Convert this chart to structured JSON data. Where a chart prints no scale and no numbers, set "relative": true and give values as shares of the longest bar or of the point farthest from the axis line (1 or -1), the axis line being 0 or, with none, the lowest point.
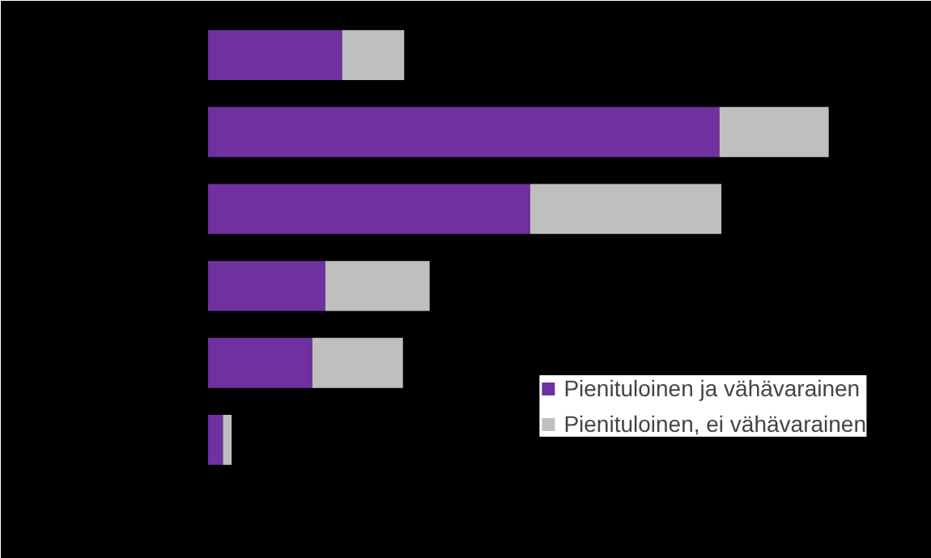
{
  "chart_data": {
    "type": "bar",
    "orientation": "horizontal",
    "stacked": true,
    "relative": true,
    "categories": [
      null,
      null,
      null,
      null,
      null,
      null
    ],
    "series": [
      {
        "name": "Pienituloinen ja vähävarainen",
        "color": "#7030a0",
        "values": [
          0.216,
          0.824,
          0.519,
          0.189,
          0.168,
          0.024
        ]
      },
      {
        "name": "Pienituloinen, ei vähävarainen",
        "color": "#bfbfbf",
        "values": [
          0.1,
          0.176,
          0.308,
          0.168,
          0.146,
          0.014
        ]
      }
    ],
    "legend": "bottom right",
    "grid": false
  }
}
